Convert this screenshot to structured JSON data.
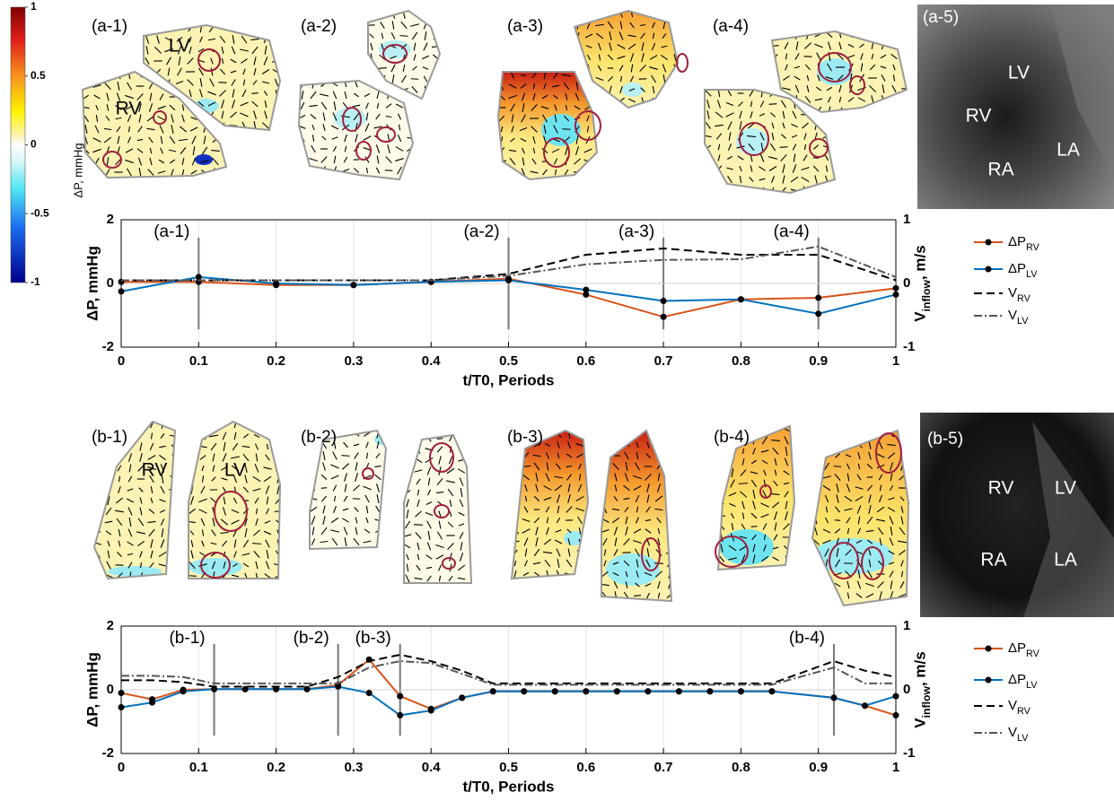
{
  "colorbar": {
    "label": "ΔP, mmHg",
    "lim": [
      -1,
      1
    ],
    "ticks": [
      1,
      0.5,
      0,
      -0.5,
      -1
    ]
  },
  "panels": {
    "a": [
      {
        "label": "(a-1)",
        "chambers": [
          "RV",
          "LV"
        ]
      },
      {
        "label": "(a-2)",
        "chambers": []
      },
      {
        "label": "(a-3)",
        "chambers": []
      },
      {
        "label": "(a-4)",
        "chambers": []
      },
      {
        "label": "(a-5)",
        "chambers": [
          "LV",
          "RV",
          "LA",
          "RA"
        ]
      }
    ],
    "b": [
      {
        "label": "(b-1)",
        "chambers": [
          "RV",
          "LV"
        ]
      },
      {
        "label": "(b-2)",
        "chambers": []
      },
      {
        "label": "(b-3)",
        "chambers": []
      },
      {
        "label": "(b-4)",
        "chambers": []
      },
      {
        "label": "(b-5)",
        "chambers": [
          "RV",
          "LV",
          "RA",
          "LA"
        ]
      }
    ]
  },
  "chart_data": [
    {
      "type": "line",
      "xlabel": "t/T0, Periods",
      "ylabel": "ΔP, mmHg",
      "y2label": "V_{inflow}, m/s",
      "x": [
        0,
        0.1,
        0.2,
        0.3,
        0.4,
        0.5,
        0.6,
        0.7,
        0.8,
        0.9,
        1
      ],
      "xlim": [
        0,
        1
      ],
      "xticks": [
        0,
        0.1,
        0.2,
        0.3,
        0.4,
        0.5,
        0.6,
        0.7,
        0.8,
        0.9,
        1
      ],
      "ylim": [
        -2,
        2
      ],
      "yticks": [
        -2,
        0,
        2
      ],
      "y2lim": [
        -1,
        1
      ],
      "y2ticks": [
        -1,
        0,
        1
      ],
      "grid": true,
      "series": [
        {
          "name": "ΔP_{RV}",
          "color": "#d95319",
          "marker": "dot",
          "values": [
            0.05,
            0.05,
            -0.05,
            -0.05,
            0.05,
            0.15,
            -0.35,
            -1.05,
            -0.5,
            -0.45,
            -0.15
          ]
        },
        {
          "name": "ΔP_{LV}",
          "color": "#0072bd",
          "marker": "dot",
          "values": [
            -0.25,
            0.2,
            0,
            -0.05,
            0.05,
            0.1,
            -0.2,
            -0.55,
            -0.5,
            -0.95,
            -0.35
          ]
        },
        {
          "name": "V_{RV}",
          "color": "#000000",
          "style": "dashed",
          "axis": "y2",
          "values": [
            0.05,
            0.05,
            0.05,
            0.05,
            0.05,
            0.15,
            0.45,
            0.55,
            0.45,
            0.45,
            0.05
          ]
        },
        {
          "name": "V_{LV}",
          "color": "#555555",
          "style": "dashdot",
          "axis": "y2",
          "values": [
            0.05,
            0.05,
            0.05,
            0.05,
            0.05,
            0.12,
            0.3,
            0.37,
            0.38,
            0.58,
            0.1
          ]
        }
      ],
      "annotations": [
        {
          "x": 0.1,
          "label": "(a-1)"
        },
        {
          "x": 0.5,
          "label": "(a-2)"
        },
        {
          "x": 0.7,
          "label": "(a-3)"
        },
        {
          "x": 0.9,
          "label": "(a-4)"
        }
      ]
    },
    {
      "type": "line",
      "xlabel": "t/T0, Periods",
      "ylabel": "ΔP, mmHg",
      "y2label": "V_{inflow}, m/s",
      "x": [
        0,
        0.04,
        0.08,
        0.12,
        0.16,
        0.2,
        0.24,
        0.28,
        0.32,
        0.36,
        0.4,
        0.44,
        0.48,
        0.52,
        0.56,
        0.6,
        0.64,
        0.68,
        0.72,
        0.76,
        0.8,
        0.84,
        0.92,
        0.96,
        1
      ],
      "xlim": [
        0,
        1
      ],
      "xticks": [
        0,
        0.1,
        0.2,
        0.3,
        0.4,
        0.5,
        0.6,
        0.7,
        0.8,
        0.9,
        1
      ],
      "ylim": [
        -2,
        2
      ],
      "yticks": [
        -2,
        0,
        2
      ],
      "y2lim": [
        -1,
        1
      ],
      "y2ticks": [
        -1,
        0,
        1
      ],
      "grid": true,
      "series": [
        {
          "name": "ΔP_{RV}",
          "color": "#d95319",
          "marker": "dot",
          "values": [
            -0.1,
            -0.3,
            0,
            0.02,
            0.02,
            0.02,
            0.02,
            0.15,
            0.95,
            -0.2,
            -0.6,
            -0.25,
            -0.05,
            -0.05,
            -0.05,
            -0.05,
            -0.05,
            -0.05,
            -0.05,
            -0.05,
            -0.05,
            -0.05,
            -0.25,
            -0.5,
            -0.8
          ]
        },
        {
          "name": "ΔP_{LV}",
          "color": "#0072bd",
          "marker": "dot",
          "values": [
            -0.55,
            -0.4,
            -0.05,
            0.02,
            0.02,
            0.02,
            0.02,
            0.1,
            -0.1,
            -0.8,
            -0.65,
            -0.25,
            -0.05,
            -0.05,
            -0.05,
            -0.05,
            -0.05,
            -0.05,
            -0.05,
            -0.05,
            -0.05,
            -0.05,
            -0.25,
            -0.5,
            -0.2
          ]
        },
        {
          "name": "V_{RV}",
          "color": "#000000",
          "style": "dashed",
          "axis": "y2",
          "values": [
            0.15,
            0.15,
            0.12,
            0.05,
            0.05,
            0.05,
            0.05,
            0.2,
            0.45,
            0.55,
            0.45,
            0.3,
            0.1,
            0.1,
            0.1,
            0.1,
            0.1,
            0.1,
            0.1,
            0.1,
            0.1,
            0.1,
            0.45,
            0.3,
            0.2
          ]
        },
        {
          "name": "V_{LV}",
          "color": "#555555",
          "style": "dashdot",
          "axis": "y2",
          "values": [
            0.22,
            0.22,
            0.2,
            0.1,
            0.1,
            0.1,
            0.1,
            0.1,
            0.35,
            0.45,
            0.42,
            0.25,
            0.08,
            0.08,
            0.08,
            0.08,
            0.08,
            0.08,
            0.08,
            0.08,
            0.08,
            0.08,
            0.35,
            0.1,
            0.1
          ]
        }
      ],
      "annotations": [
        {
          "x": 0.12,
          "label": "(b-1)"
        },
        {
          "x": 0.28,
          "label": "(b-2)"
        },
        {
          "x": 0.36,
          "label": "(b-3)"
        },
        {
          "x": 0.92,
          "label": "(b-4)"
        }
      ]
    }
  ]
}
